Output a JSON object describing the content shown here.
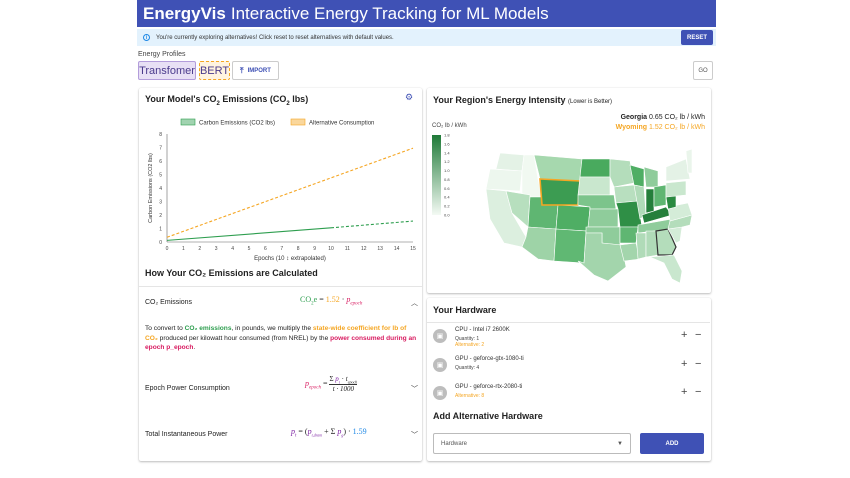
{
  "header": {
    "brand": "EnergyVis",
    "tagline": "Interactive Energy Tracking for ML Models"
  },
  "alert": {
    "message": "You're currently exploring alternatives! Click reset to reset alternatives with default values.",
    "reset_label": "RESET"
  },
  "profiles": {
    "label": "Energy Profiles",
    "items": [
      "Transfomer",
      "BERT"
    ],
    "import_label": "IMPORT",
    "go_label": "GO"
  },
  "emissions_card": {
    "title_prefix": "Your Model's CO",
    "title_sub": "2",
    "title_suffix": " Emissions (CO",
    "title_sub2": "2",
    "title_end": " lbs)"
  },
  "chart_data": {
    "type": "line",
    "legend": [
      "Carbon Emissions (CO2 lbs)",
      "Alternative Consumption"
    ],
    "legend_placement": "top",
    "ylabel": "Carbon Emissions (CO2 lbs)",
    "xlabel": "Epochs (10 ↕ extrapolated)",
    "xlim": [
      0,
      15
    ],
    "ylim": [
      0,
      8
    ],
    "x_ticks": [
      "0",
      "1",
      "2",
      "3",
      "4",
      "5",
      "6",
      "7",
      "8",
      "9",
      "10",
      "11",
      "12",
      "13",
      "14",
      "15"
    ],
    "y_ticks": [
      "0",
      "1",
      "2",
      "3",
      "4",
      "5",
      "6",
      "7",
      "8"
    ],
    "series": [
      {
        "name": "Carbon Emissions (CO2 lbs)",
        "color": "#2e9e4f",
        "x": [
          0,
          10,
          15
        ],
        "y": [
          0.12,
          1.05,
          1.55
        ],
        "dash_after": 10
      },
      {
        "name": "Alternative Consumption",
        "color": "#f5a623",
        "x": [
          0,
          15
        ],
        "y": [
          0.35,
          6.95
        ],
        "dash_after": 0
      }
    ]
  },
  "calc": {
    "title": "How Your CO₂ Emissions are Calculated",
    "rows": [
      {
        "label": "CO₂ Emissions",
        "equation": "CO₂e = 1.52 · p_epoch"
      },
      {
        "label": "Epoch Power Consumption",
        "equation": "p_epoch = (Σ p_t · t_epoch) / (t · 1000)"
      },
      {
        "label": "Total Instantaneous Power",
        "equation": "p_t = (p_t,dram + Σ p_g) · 1.59"
      }
    ],
    "explain": {
      "t1": "To convert to ",
      "t2": "CO₂ emissions",
      "t3": ", in pounds, we multiply the ",
      "t4": "state-wide coefficient for lb of CO₂",
      "t5": " produced per kilowatt hour consumed (from NREL) by the ",
      "t6": "power consumed during an epoch p_epoch",
      "t7": "."
    }
  },
  "map_card": {
    "title": "Your Region's Energy Intensity",
    "title_note": "(Lower is Better)",
    "scale_label": "CO₂ lb / kWh",
    "scale_ticks": [
      "1.8",
      "1.6",
      "1.4",
      "1.2",
      "1.0",
      "0.8",
      "0.6",
      "0.4",
      "0.2",
      "0.0"
    ],
    "readouts": [
      {
        "state": "Georgia",
        "value": "0.65 CO₂ lb / kWh",
        "color": "#222222"
      },
      {
        "state": "Wyoming",
        "value": "1.52 CO₂ lb / kWh",
        "color": "#f5a623"
      }
    ]
  },
  "hardware": {
    "title": "Your Hardware",
    "items": [
      {
        "name": "CPU - Intel i7 2600K",
        "qty": "Quantity: 1",
        "alt": "Alternative: 2"
      },
      {
        "name": "GPU - geforce-gtx-1080-ti",
        "qty": "Quantity: 4",
        "alt": ""
      },
      {
        "name": "GPU - geforce-rtx-2080-ti",
        "qty": "Quantity: 0",
        "alt": "Alternative: 8"
      }
    ],
    "add_title": "Add Alternative Hardware",
    "select_value": "Hardware",
    "add_label": "ADD"
  },
  "colors": {
    "primary": "#3f51b5",
    "green": "#2e9e4f",
    "orange": "#f5a623",
    "pink": "#d81b60"
  }
}
